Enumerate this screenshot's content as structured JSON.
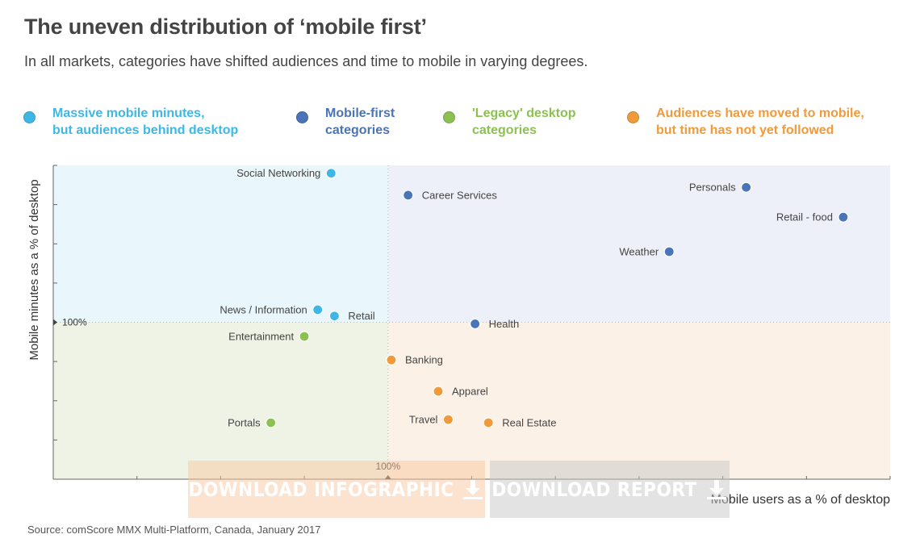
{
  "header": {
    "title": "The uneven distribution of ‘mobile first’",
    "subtitle": "In all markets, categories have shifted audiences and time to mobile in varying degrees."
  },
  "legend": [
    {
      "label": "Massive mobile minutes,\nbut audiences behind desktop",
      "color": "#3fb7e6"
    },
    {
      "label": "Mobile-first\ncategories",
      "color": "#4a74b8"
    },
    {
      "label": "'Legacy' desktop\ncategories",
      "color": "#8cc152"
    },
    {
      "label": "Audiences have moved to mobile,\nbut time has not yet followed",
      "color": "#f09a3c"
    }
  ],
  "quadrant_colors": {
    "top_left": "#e9f6fb",
    "top_right": "#edf0f8",
    "bottom_left": "#eef3e6",
    "bottom_right": "#fcf1e6"
  },
  "chart_data": {
    "type": "scatter",
    "title": "The uneven distribution of ‘mobile first’",
    "xlabel": "Mobile users as a % of desktop",
    "ylabel": "Mobile minutes as a % of desktop",
    "x_reference_label": "100%",
    "y_reference_label": "100%",
    "x_reference": 100,
    "y_reference": 100,
    "xlim": [
      0,
      250
    ],
    "ylim": [
      0,
      200
    ],
    "grid": false,
    "legend_position": "top",
    "series": [
      {
        "name": "Massive mobile minutes, but audiences behind desktop",
        "color": "#3fb7e6",
        "points": [
          {
            "label": "Social Networking",
            "x": 83,
            "y": 195
          },
          {
            "label": "News / Information",
            "x": 79,
            "y": 108
          },
          {
            "label": "Retail",
            "x": 84,
            "y": 104
          }
        ]
      },
      {
        "name": "Mobile-first categories",
        "color": "#4a74b8",
        "points": [
          {
            "label": "Career Services",
            "x": 106,
            "y": 181
          },
          {
            "label": "Personals",
            "x": 207,
            "y": 186
          },
          {
            "label": "Retail - food",
            "x": 236,
            "y": 167
          },
          {
            "label": "Weather",
            "x": 184,
            "y": 145
          },
          {
            "label": "Health",
            "x": 126,
            "y": 99
          }
        ]
      },
      {
        "name": "'Legacy' desktop categories",
        "color": "#8cc152",
        "points": [
          {
            "label": "Entertainment",
            "x": 75,
            "y": 91
          },
          {
            "label": "Portals",
            "x": 65,
            "y": 36
          }
        ]
      },
      {
        "name": "Audiences have moved to mobile, but time has not yet followed",
        "color": "#f09a3c",
        "points": [
          {
            "label": "Banking",
            "x": 101,
            "y": 76
          },
          {
            "label": "Apparel",
            "x": 115,
            "y": 56
          },
          {
            "label": "Travel",
            "x": 118,
            "y": 38
          },
          {
            "label": "Real Estate",
            "x": 130,
            "y": 36
          }
        ]
      }
    ]
  },
  "buttons": {
    "download_infographic": "DOWNLOAD INFOGRAPHIC",
    "download_report": "DOWNLOAD REPORT"
  },
  "source": "Source: comScore MMX Multi-Platform, Canada, January 2017"
}
